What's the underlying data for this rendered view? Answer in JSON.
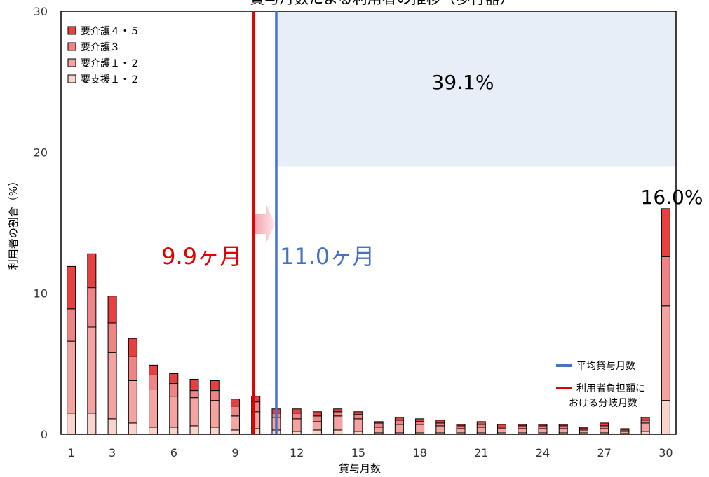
{
  "chart_data": {
    "type": "bar",
    "stacked": true,
    "title": "貸与月数による利用者の推移（歩行器）",
    "xlabel": "貸与月数",
    "ylabel": "利用者の割合（%）",
    "ylim": [
      0,
      30
    ],
    "yticks": [
      "0",
      "10",
      "20",
      "30"
    ],
    "xticks": [
      "1",
      "3",
      "6",
      "9",
      "12",
      "15",
      "18",
      "21",
      "24",
      "27",
      "30"
    ],
    "grid": false,
    "legend_position": "top-left",
    "categories": [
      "1",
      "2",
      "3",
      "4",
      "5",
      "6",
      "7",
      "8",
      "9",
      "10",
      "11",
      "12",
      "13",
      "14",
      "15",
      "16",
      "17",
      "18",
      "19",
      "20",
      "21",
      "22",
      "23",
      "24",
      "25",
      "26",
      "27",
      "28",
      "29",
      "30"
    ],
    "series": [
      {
        "name": "要支援１・２",
        "color": "#fbd3cd",
        "values": [
          1.5,
          1.5,
          1.1,
          0.8,
          0.5,
          0.5,
          0.6,
          0.5,
          0.3,
          0.4,
          0.3,
          0.2,
          0.3,
          0.3,
          0.2,
          0.1,
          0.1,
          0.1,
          0.1,
          0.1,
          0.1,
          0.1,
          0.1,
          0.1,
          0.1,
          0.1,
          0.1,
          0.05,
          0.2,
          2.4
        ]
      },
      {
        "name": "要介護１・２",
        "color": "#f4a3a1",
        "values": [
          5.1,
          6.1,
          4.7,
          3.0,
          2.7,
          2.2,
          2.0,
          1.9,
          1.0,
          1.2,
          0.9,
          0.9,
          0.6,
          1.0,
          0.9,
          0.4,
          0.6,
          0.6,
          0.5,
          0.3,
          0.4,
          0.3,
          0.3,
          0.3,
          0.3,
          0.2,
          0.3,
          0.15,
          0.6,
          6.7
        ]
      },
      {
        "name": "要介護３",
        "color": "#f08383",
        "values": [
          2.3,
          2.8,
          2.1,
          1.7,
          1.0,
          0.9,
          0.5,
          0.7,
          0.7,
          0.7,
          0.3,
          0.4,
          0.4,
          0.3,
          0.3,
          0.3,
          0.3,
          0.2,
          0.2,
          0.2,
          0.2,
          0.1,
          0.2,
          0.2,
          0.2,
          0.1,
          0.2,
          0.1,
          0.2,
          3.5
        ]
      },
      {
        "name": "要介護４・５",
        "color": "#e84040",
        "values": [
          3.0,
          2.4,
          1.9,
          1.3,
          0.7,
          0.7,
          0.8,
          0.7,
          0.5,
          0.4,
          0.3,
          0.3,
          0.3,
          0.2,
          0.2,
          0.1,
          0.2,
          0.2,
          0.2,
          0.1,
          0.2,
          0.2,
          0.1,
          0.1,
          0.1,
          0.1,
          0.2,
          0.1,
          0.2,
          3.4
        ]
      }
    ],
    "legend_order": [
      3,
      2,
      1,
      0
    ],
    "reference_lines": [
      {
        "x": 9.9,
        "color": "#e00000",
        "legend": "利用者負担額における分岐月数",
        "label": "9.9ヶ月"
      },
      {
        "x": 11.0,
        "color": "#4472c4",
        "legend": "平均貸与月数",
        "label": "11.0ヶ月"
      }
    ],
    "shaded_region": {
      "x_from": 11.0,
      "x_to": 30.5,
      "y_from": 19,
      "y_to": 30,
      "color": "#e8eef8",
      "label": "39.1%"
    },
    "bar_label": {
      "x": 30,
      "label": "16.0%"
    }
  }
}
